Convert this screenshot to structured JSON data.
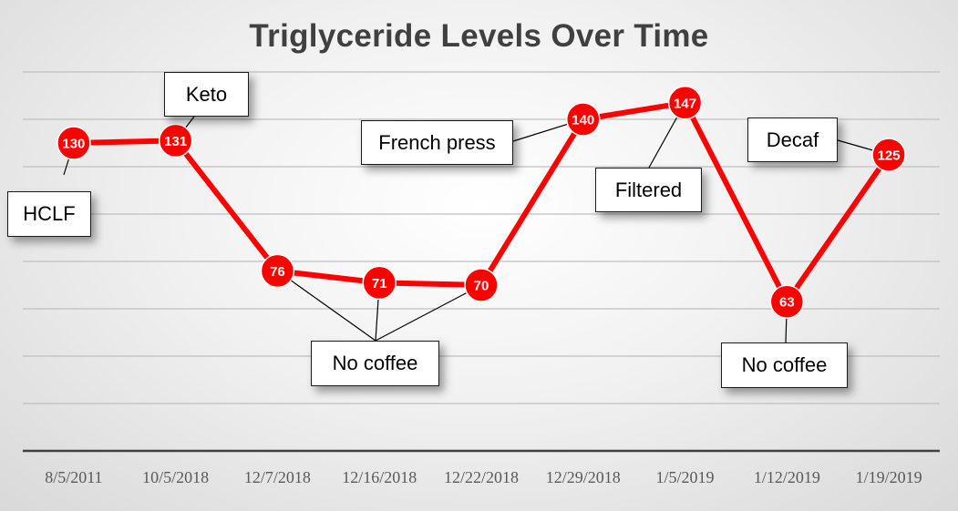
{
  "chart_data": {
    "type": "line",
    "title": "Triglyceride Levels Over Time",
    "xlabel": "",
    "ylabel": "",
    "categories": [
      "8/5/2011",
      "10/5/2018",
      "12/7/2018",
      "12/16/2018",
      "12/22/2018",
      "12/29/2018",
      "1/5/2019",
      "1/12/2019",
      "1/19/2019"
    ],
    "series": [
      {
        "values": [
          130,
          131,
          76,
          71,
          70,
          140,
          147,
          63,
          125
        ]
      }
    ],
    "ylim": [
      0,
      160
    ],
    "grid": true,
    "legend": "none",
    "annotations": [
      {
        "text": "HCLF",
        "points": [
          0
        ]
      },
      {
        "text": "Keto",
        "points": [
          1
        ]
      },
      {
        "text": "No coffee",
        "points": [
          2,
          3,
          4
        ]
      },
      {
        "text": "French press",
        "points": [
          5
        ]
      },
      {
        "text": "Filtered",
        "points": [
          6
        ]
      },
      {
        "text": "No coffee",
        "points": [
          7
        ]
      },
      {
        "text": "Decaf",
        "points": [
          8
        ]
      }
    ],
    "colors": {
      "line": "#ff0000",
      "marker": "#ff0000",
      "marker_border": "#ffffff",
      "grid": "#bfbfbf",
      "axis": "#404040"
    }
  }
}
